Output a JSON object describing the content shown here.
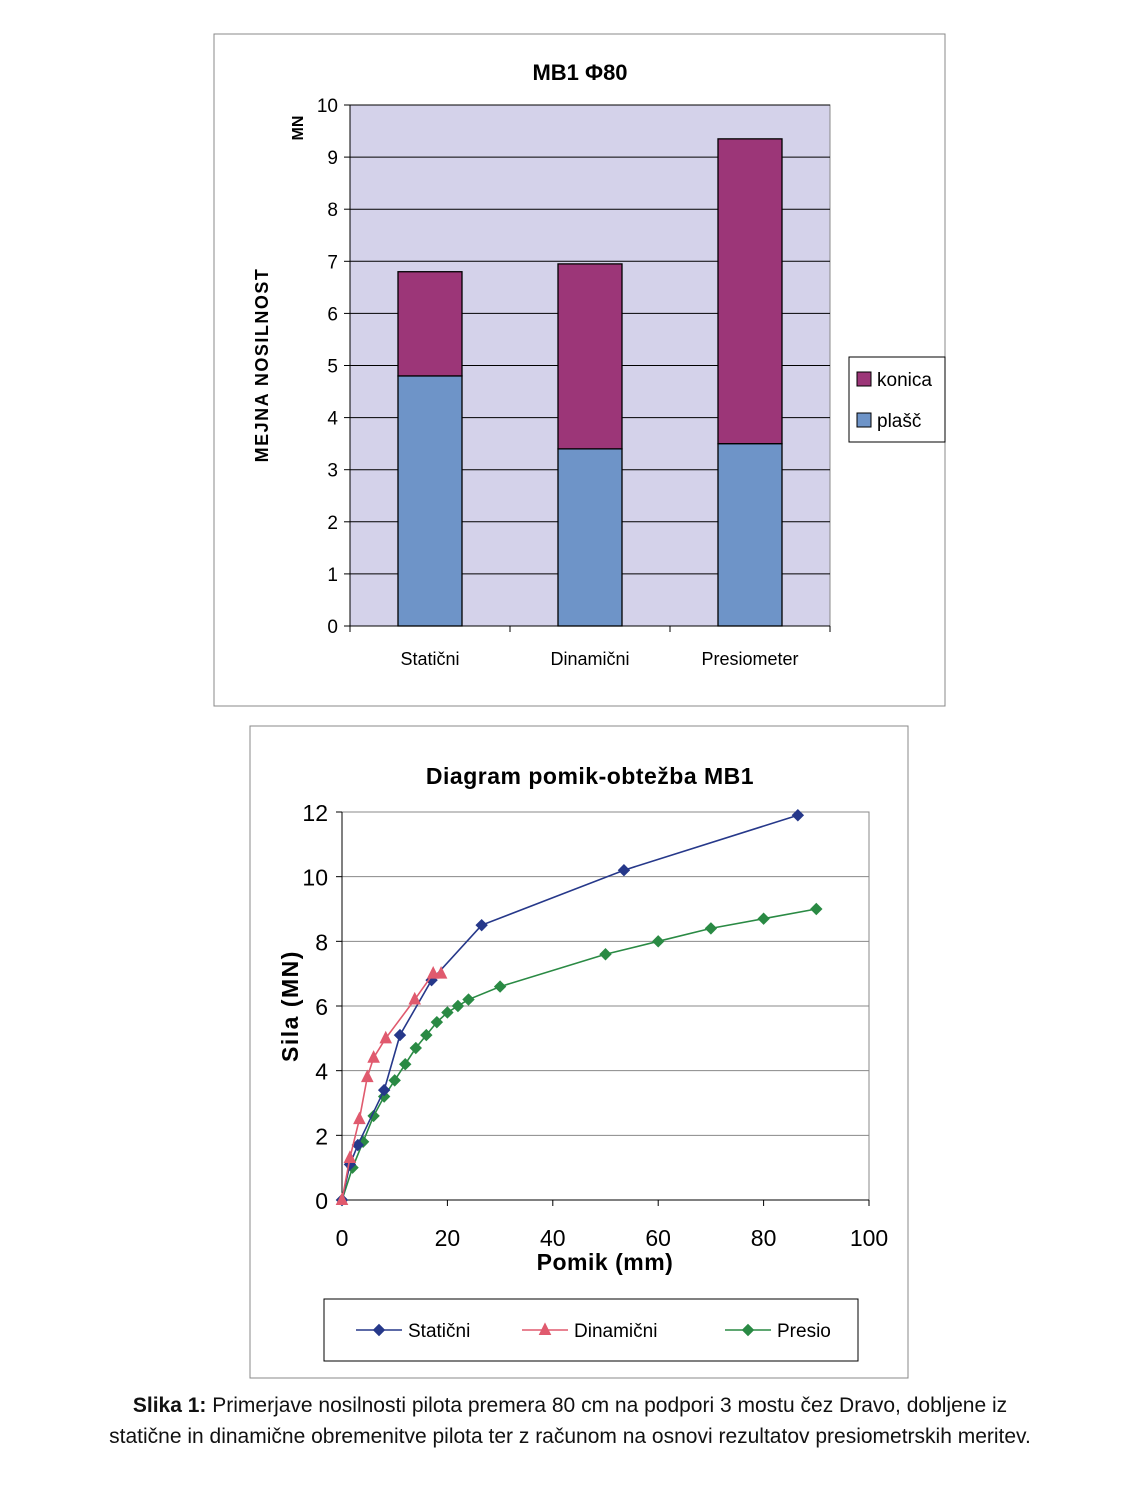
{
  "chart_data": [
    {
      "type": "bar",
      "stacked": true,
      "title": "MB1 Φ80",
      "ylabel": "MEJNA NOSILNOST",
      "yunit": "MN",
      "categories": [
        "Statični",
        "Dinamični",
        "Presiometer"
      ],
      "series": [
        {
          "name": "plašč",
          "values": [
            4.8,
            3.4,
            3.5
          ],
          "color": "#6e94c8"
        },
        {
          "name": "konica",
          "values": [
            2.0,
            3.55,
            5.85
          ],
          "color": "#9c3678"
        }
      ],
      "ylim": [
        0,
        10
      ],
      "yticks": [
        "0",
        "1",
        "2",
        "3",
        "4",
        "5",
        "6",
        "7",
        "8",
        "9",
        "10"
      ],
      "grid": true,
      "legend": "right",
      "plot_bg": "#d4d2ea"
    },
    {
      "type": "line",
      "title": "Diagram pomik-obtežba MB1",
      "xlabel": "Pomik (mm)",
      "ylabel": "Sila (MN)",
      "xlim": [
        0,
        100
      ],
      "ylim": [
        0,
        12
      ],
      "xticks": [
        "0",
        "20",
        "40",
        "60",
        "80",
        "100"
      ],
      "yticks": [
        "0",
        "2",
        "4",
        "6",
        "8",
        "10",
        "12"
      ],
      "grid": true,
      "legend": "bottom",
      "series": [
        {
          "name": "Statični",
          "marker": "diamond",
          "color": "#26388a",
          "points": [
            [
              0,
              0
            ],
            [
              1.5,
              1.1
            ],
            [
              3,
              1.7
            ],
            [
              8,
              3.4
            ],
            [
              11,
              5.1
            ],
            [
              17,
              6.8
            ],
            [
              26.5,
              8.5
            ],
            [
              53.5,
              10.2
            ],
            [
              86.5,
              11.9
            ]
          ]
        },
        {
          "name": "Dinamični",
          "marker": "triangle",
          "color": "#e05a6e",
          "points": [
            [
              0,
              0
            ],
            [
              1.5,
              1.3
            ],
            [
              3.3,
              2.5
            ],
            [
              4.8,
              3.8
            ],
            [
              6,
              4.4
            ],
            [
              8.3,
              5.0
            ],
            [
              13.8,
              6.2
            ],
            [
              17.3,
              7.0
            ],
            [
              18.8,
              7.0
            ]
          ]
        },
        {
          "name": "Presio",
          "marker": "diamond",
          "color": "#2a8a44",
          "points": [
            [
              0,
              0
            ],
            [
              2,
              1.0
            ],
            [
              4,
              1.8
            ],
            [
              6,
              2.6
            ],
            [
              8,
              3.2
            ],
            [
              10,
              3.7
            ],
            [
              12,
              4.2
            ],
            [
              14,
              4.7
            ],
            [
              16,
              5.1
            ],
            [
              18,
              5.5
            ],
            [
              20,
              5.8
            ],
            [
              22,
              6.0
            ],
            [
              24,
              6.2
            ],
            [
              30,
              6.6
            ],
            [
              50,
              7.6
            ],
            [
              60,
              8.0
            ],
            [
              70,
              8.4
            ],
            [
              80,
              8.7
            ],
            [
              90,
              9.0
            ]
          ]
        }
      ]
    }
  ],
  "caption": {
    "label": "Slika 1:",
    "line1": " Primerjave nosilnosti pilota premera 80 cm na podpori 3 mostu čez Dravo, dobljene iz",
    "line2": "statične in dinamične obremenitve pilota ter z računom na osnovi rezultatov presiometrskih meritev."
  }
}
